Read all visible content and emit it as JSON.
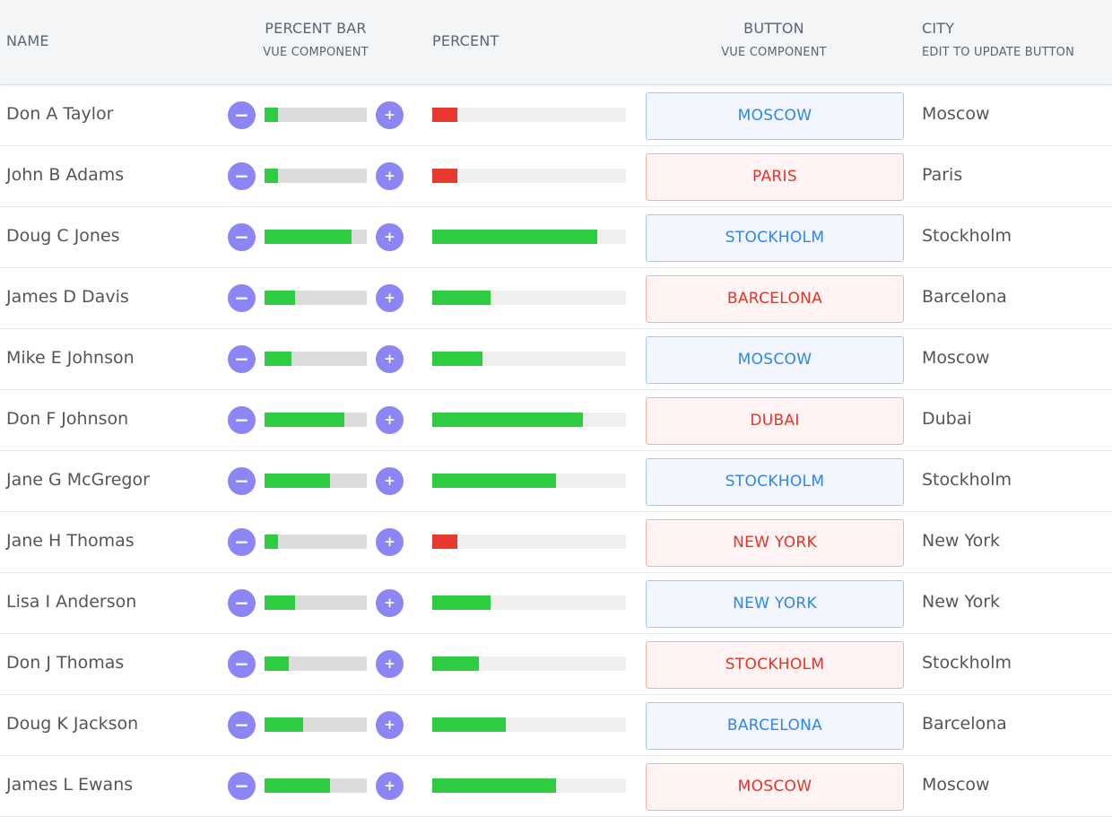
{
  "columns": {
    "name": "NAME",
    "percent_bar": {
      "title": "PERCENT BAR",
      "subtitle": "VUE COMPONENT"
    },
    "percent": "PERCENT",
    "button": {
      "title": "BUTTON",
      "subtitle": "VUE COMPONENT"
    },
    "city": {
      "title": "CITY",
      "subtitle": "EDIT TO UPDATE BUTTON"
    }
  },
  "colors": {
    "bar_green": "#2ecc40",
    "bar_red": "#e8392c",
    "round_button": "#8c85f5",
    "button_blue": "#2f86e6",
    "button_red": "#e0362a"
  },
  "rows": [
    {
      "name": "Don A Taylor",
      "percent": 13,
      "button": "Moscow",
      "button_style": "blue",
      "city": "Moscow"
    },
    {
      "name": "John B Adams",
      "percent": 13,
      "button": "Paris",
      "button_style": "red",
      "city": "Paris"
    },
    {
      "name": "Doug C Jones",
      "percent": 85,
      "button": "Stockholm",
      "button_style": "blue",
      "city": "Stockholm"
    },
    {
      "name": "James D Davis",
      "percent": 30,
      "button": "Barcelona",
      "button_style": "red",
      "city": "Barcelona"
    },
    {
      "name": "Mike E Johnson",
      "percent": 26,
      "button": "Moscow",
      "button_style": "blue",
      "city": "Moscow"
    },
    {
      "name": "Don F Johnson",
      "percent": 78,
      "button": "Dubai",
      "button_style": "red",
      "city": "Dubai"
    },
    {
      "name": "Jane G McGregor",
      "percent": 64,
      "button": "Stockholm",
      "button_style": "blue",
      "city": "Stockholm"
    },
    {
      "name": "Jane H Thomas",
      "percent": 13,
      "button": "New York",
      "button_style": "red",
      "city": "New York"
    },
    {
      "name": "Lisa I Anderson",
      "percent": 30,
      "button": "New York",
      "button_style": "blue",
      "city": "New York"
    },
    {
      "name": "Don J Thomas",
      "percent": 24,
      "button": "Stockholm",
      "button_style": "red",
      "city": "Stockholm"
    },
    {
      "name": "Doug K Jackson",
      "percent": 38,
      "button": "Barcelona",
      "button_style": "blue",
      "city": "Barcelona"
    },
    {
      "name": "James L Ewans",
      "percent": 64,
      "button": "Moscow",
      "button_style": "red",
      "city": "Moscow"
    }
  ]
}
